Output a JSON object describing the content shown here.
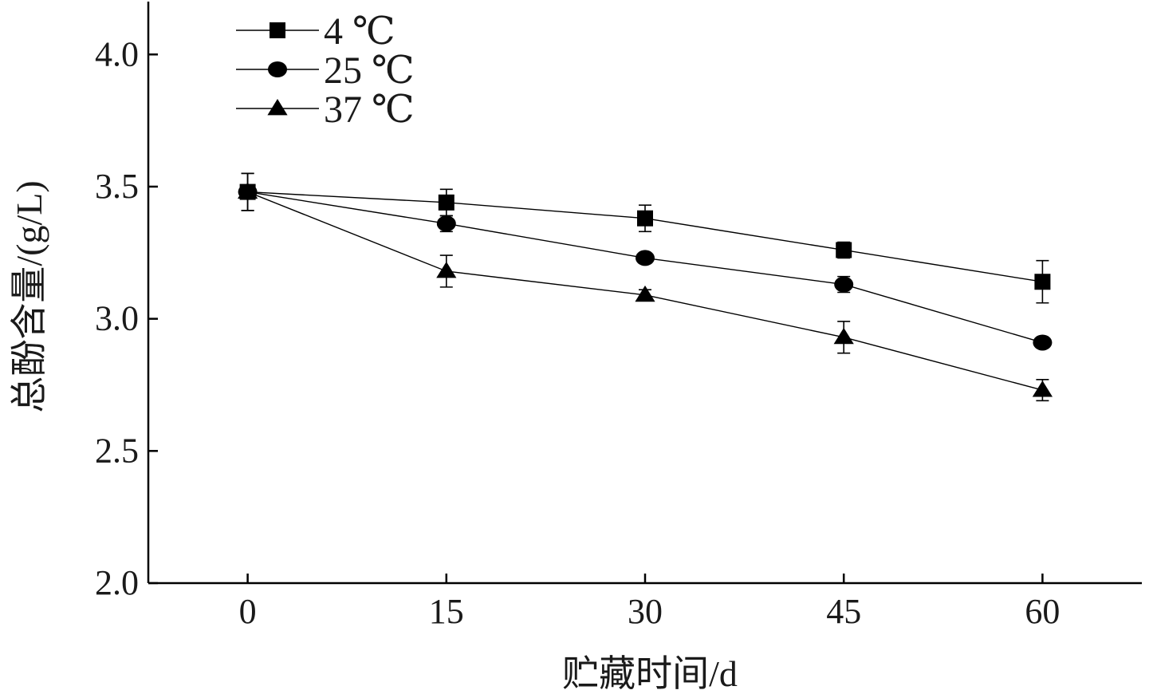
{
  "chart_data": {
    "type": "line",
    "title": "",
    "xlabel": "贮藏时间/d",
    "ylabel": "总酚含量/(g/L)",
    "x": [
      0,
      15,
      30,
      45,
      60
    ],
    "x_tick_labels": [
      "0",
      "15",
      "30",
      "45",
      "60"
    ],
    "y_tick_labels": [
      "2.0",
      "2.5",
      "3.0",
      "3.5",
      "4.0"
    ],
    "ylim": [
      2.0,
      4.2
    ],
    "xlim": [
      -7.5,
      67.5
    ],
    "grid": false,
    "legend_position": "top-left",
    "series": [
      {
        "name": "4 ℃",
        "marker": "square",
        "values": [
          3.48,
          3.44,
          3.38,
          3.26,
          3.14
        ],
        "errors": [
          0.07,
          0.05,
          0.05,
          0.03,
          0.08
        ]
      },
      {
        "name": "25 ℃",
        "marker": "circle",
        "values": [
          3.48,
          3.36,
          3.23,
          3.13,
          2.91
        ],
        "errors": [
          0.07,
          0.03,
          0.02,
          0.03,
          0.02
        ]
      },
      {
        "name": "37 ℃",
        "marker": "triangle",
        "values": [
          3.48,
          3.18,
          3.09,
          2.93,
          2.73
        ],
        "errors": [
          0.07,
          0.06,
          0.02,
          0.06,
          0.04
        ]
      }
    ]
  }
}
